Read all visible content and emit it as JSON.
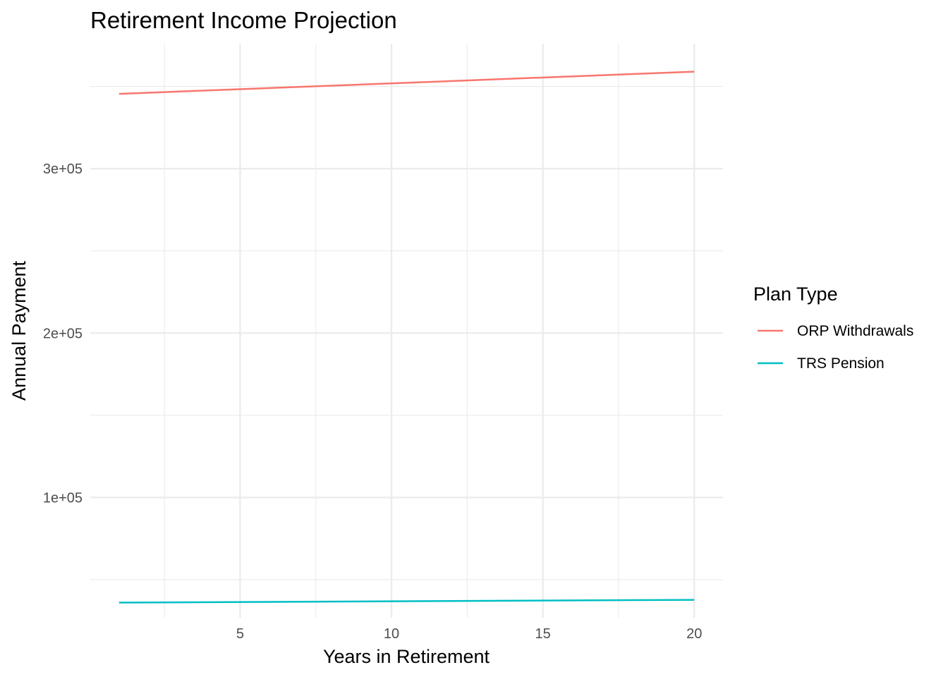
{
  "chart_data": {
    "type": "line",
    "title": "Retirement Income Projection",
    "xlabel": "Years in Retirement",
    "ylabel": "Annual Payment",
    "xlim": [
      0.05,
      20.95
    ],
    "ylim": [
      26800,
      376000
    ],
    "x_ticks": [
      {
        "value": 5,
        "label": "5"
      },
      {
        "value": 10,
        "label": "10"
      },
      {
        "value": 15,
        "label": "15"
      },
      {
        "value": 20,
        "label": "20"
      }
    ],
    "x_minor": [
      2.5,
      7.5,
      12.5,
      17.5
    ],
    "y_ticks": [
      {
        "value": 100000,
        "label": "1e+05"
      },
      {
        "value": 200000,
        "label": "2e+05"
      },
      {
        "value": 300000,
        "label": "3e+05"
      }
    ],
    "y_minor": [
      50000,
      150000,
      250000,
      350000
    ],
    "grid": true,
    "legend": {
      "title": "Plan Type",
      "position": "right"
    },
    "series": [
      {
        "name": "ORP Withdrawals",
        "color": "#f8766d",
        "x": [
          1,
          20
        ],
        "y": [
          345500,
          359000
        ]
      },
      {
        "name": "TRS Pension",
        "color": "#00bfc4",
        "x": [
          1,
          20
        ],
        "y": [
          36000,
          37700
        ]
      }
    ]
  }
}
